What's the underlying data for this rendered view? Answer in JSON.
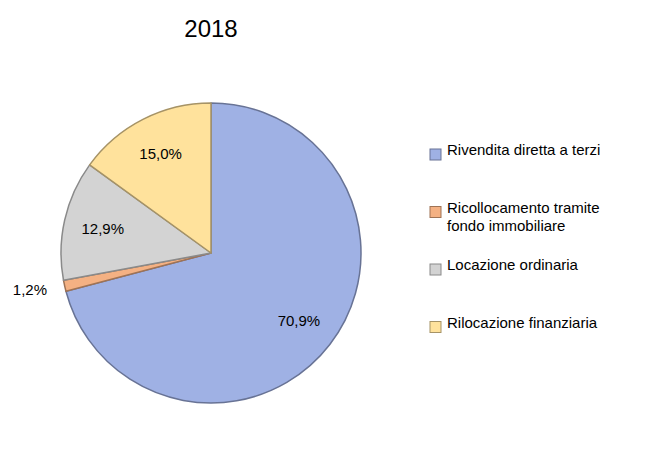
{
  "chart_data": {
    "type": "pie",
    "title": "2018",
    "categories": [
      "Rivendita diretta a terzi",
      "Ricollocamento tramite fondo immobiliare",
      "Locazione ordinaria",
      "Rilocazione finanziaria"
    ],
    "values": [
      70.9,
      1.2,
      12.9,
      15.0
    ],
    "value_labels": [
      "70,9%",
      "1,2%",
      "12,9%",
      "15,0%"
    ],
    "colors": [
      "#9fb1e4",
      "#f4b183",
      "#d3d3d3",
      "#ffe29c"
    ],
    "data_labels": true,
    "legend": "right"
  }
}
